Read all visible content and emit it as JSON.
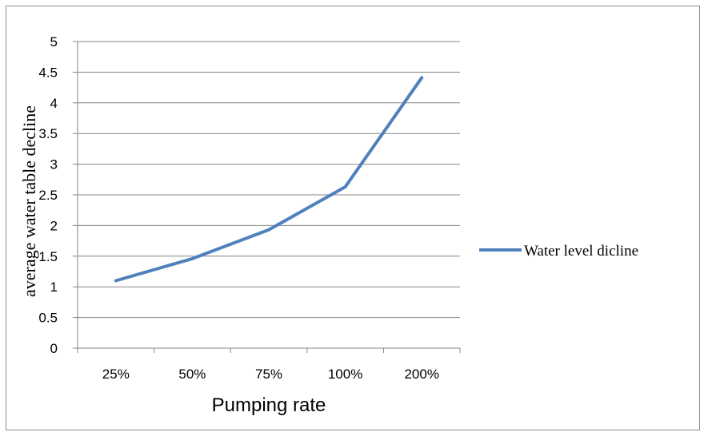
{
  "chart_data": {
    "type": "line",
    "categories": [
      "25%",
      "50%",
      "75%",
      "100%",
      "200%"
    ],
    "series": [
      {
        "name": "Water level dicline",
        "values": [
          1.1,
          1.46,
          1.93,
          2.63,
          4.41
        ]
      }
    ],
    "xlabel": "Pumping rate",
    "ylabel": "average water table decline",
    "ylim": [
      0,
      5
    ],
    "yticks": [
      "0",
      "0.5",
      "1",
      "1.5",
      "2",
      "2.5",
      "3",
      "3.5",
      "4",
      "4.5",
      "5"
    ],
    "grid": true,
    "legend_position": "right",
    "colors": {
      "series": "#4f81bd",
      "grid": "#868686",
      "axis": "#868686"
    }
  }
}
